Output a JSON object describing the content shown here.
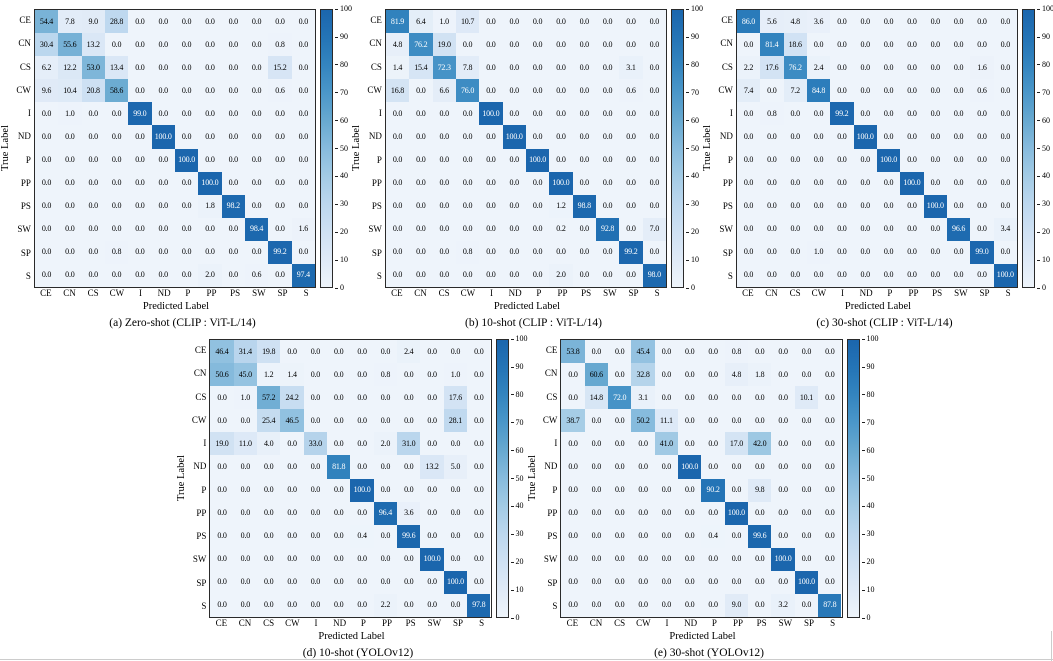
{
  "figure": {
    "xlabel": "Predicted Label",
    "ylabel": "True Label",
    "categories": [
      "CE",
      "CN",
      "CS",
      "CW",
      "I",
      "ND",
      "P",
      "PP",
      "PS",
      "SW",
      "SP",
      "S"
    ],
    "colorbar_ticks": [
      0,
      10,
      20,
      30,
      40,
      50,
      60,
      70,
      80,
      90,
      100
    ],
    "vmin": 0,
    "vmax": 100,
    "colormap": "Blues",
    "color_stops": [
      [
        0,
        "#eef4fb"
      ],
      [
        10,
        "#dfeaf7"
      ],
      [
        20,
        "#cfe1f3"
      ],
      [
        30,
        "#bcd7ee"
      ],
      [
        40,
        "#a3cbe5"
      ],
      [
        50,
        "#87bbdd"
      ],
      [
        60,
        "#68a9d0"
      ],
      [
        70,
        "#4b97c9"
      ],
      [
        80,
        "#3485bf"
      ],
      [
        90,
        "#2474b6"
      ],
      [
        100,
        "#1b66ad"
      ]
    ],
    "light_text_threshold": 66,
    "light_text_color": "#ffffff",
    "dark_text_color": "#000000"
  },
  "chart_data": [
    {
      "type": "heatmap",
      "id": "a",
      "caption": "(a) Zero-shot (CLIP : ViT-L/14)",
      "x_categories": [
        "CE",
        "CN",
        "CS",
        "CW",
        "I",
        "ND",
        "P",
        "PP",
        "PS",
        "SW",
        "SP",
        "S"
      ],
      "y_categories": [
        "CE",
        "CN",
        "CS",
        "CW",
        "I",
        "ND",
        "P",
        "PP",
        "PS",
        "SW",
        "SP",
        "S"
      ],
      "rows": [
        [
          54.4,
          7.8,
          9.0,
          28.8,
          0.0,
          0.0,
          0.0,
          0.0,
          0.0,
          0.0,
          0.0,
          0.0
        ],
        [
          30.4,
          55.6,
          13.2,
          0.0,
          0.0,
          0.0,
          0.0,
          0.0,
          0.0,
          0.0,
          0.8,
          0.0
        ],
        [
          6.2,
          12.2,
          53.0,
          13.4,
          0.0,
          0.0,
          0.0,
          0.0,
          0.0,
          0.0,
          15.2,
          0.0
        ],
        [
          9.6,
          10.4,
          20.8,
          58.6,
          0.0,
          0.0,
          0.0,
          0.0,
          0.0,
          0.0,
          0.6,
          0.0
        ],
        [
          0.0,
          1.0,
          0.0,
          0.0,
          99.0,
          0.0,
          0.0,
          0.0,
          0.0,
          0.0,
          0.0,
          0.0
        ],
        [
          0.0,
          0.0,
          0.0,
          0.0,
          0.0,
          100.0,
          0.0,
          0.0,
          0.0,
          0.0,
          0.0,
          0.0
        ],
        [
          0.0,
          0.0,
          0.0,
          0.0,
          0.0,
          0.0,
          100.0,
          0.0,
          0.0,
          0.0,
          0.0,
          0.0
        ],
        [
          0.0,
          0.0,
          0.0,
          0.0,
          0.0,
          0.0,
          0.0,
          100.0,
          0.0,
          0.0,
          0.0,
          0.0
        ],
        [
          0.0,
          0.0,
          0.0,
          0.0,
          0.0,
          0.0,
          0.0,
          1.8,
          98.2,
          0.0,
          0.0,
          0.0
        ],
        [
          0.0,
          0.0,
          0.0,
          0.0,
          0.0,
          0.0,
          0.0,
          0.0,
          0.0,
          98.4,
          0.0,
          1.6
        ],
        [
          0.0,
          0.0,
          0.0,
          0.8,
          0.0,
          0.0,
          0.0,
          0.0,
          0.0,
          0.0,
          99.2,
          0.0
        ],
        [
          0.0,
          0.0,
          0.0,
          0.0,
          0.0,
          0.0,
          0.0,
          2.0,
          0.0,
          0.6,
          0.0,
          97.4
        ]
      ]
    },
    {
      "type": "heatmap",
      "id": "b",
      "caption": "(b) 10-shot (CLIP : ViT-L/14)",
      "x_categories": [
        "CE",
        "CN",
        "CS",
        "CW",
        "I",
        "ND",
        "P",
        "PP",
        "PS",
        "SW",
        "SP",
        "S"
      ],
      "y_categories": [
        "CE",
        "CN",
        "CS",
        "CW",
        "I",
        "ND",
        "P",
        "PP",
        "PS",
        "SW",
        "SP",
        "S"
      ],
      "rows": [
        [
          81.9,
          6.4,
          1.0,
          10.7,
          0.0,
          0.0,
          0.0,
          0.0,
          0.0,
          0.0,
          0.0,
          0.0
        ],
        [
          4.8,
          76.2,
          19.0,
          0.0,
          0.0,
          0.0,
          0.0,
          0.0,
          0.0,
          0.0,
          0.0,
          0.0
        ],
        [
          1.4,
          15.4,
          72.3,
          7.8,
          0.0,
          0.0,
          0.0,
          0.0,
          0.0,
          0.0,
          3.1,
          0.0
        ],
        [
          16.8,
          0.0,
          6.6,
          76.0,
          0.0,
          0.0,
          0.0,
          0.0,
          0.0,
          0.0,
          0.6,
          0.0
        ],
        [
          0.0,
          0.0,
          0.0,
          0.0,
          100.0,
          0.0,
          0.0,
          0.0,
          0.0,
          0.0,
          0.0,
          0.0
        ],
        [
          0.0,
          0.0,
          0.0,
          0.0,
          0.0,
          100.0,
          0.0,
          0.0,
          0.0,
          0.0,
          0.0,
          0.0
        ],
        [
          0.0,
          0.0,
          0.0,
          0.0,
          0.0,
          0.0,
          100.0,
          0.0,
          0.0,
          0.0,
          0.0,
          0.0
        ],
        [
          0.0,
          0.0,
          0.0,
          0.0,
          0.0,
          0.0,
          0.0,
          100.0,
          0.0,
          0.0,
          0.0,
          0.0
        ],
        [
          0.0,
          0.0,
          0.0,
          0.0,
          0.0,
          0.0,
          0.0,
          1.2,
          98.8,
          0.0,
          0.0,
          0.0
        ],
        [
          0.0,
          0.0,
          0.0,
          0.0,
          0.0,
          0.0,
          0.0,
          0.2,
          0.0,
          92.8,
          0.0,
          7.0
        ],
        [
          0.0,
          0.0,
          0.0,
          0.8,
          0.0,
          0.0,
          0.0,
          0.0,
          0.0,
          0.0,
          99.2,
          0.0
        ],
        [
          0.0,
          0.0,
          0.0,
          0.0,
          0.0,
          0.0,
          0.0,
          2.0,
          0.0,
          0.0,
          0.0,
          98.0
        ]
      ]
    },
    {
      "type": "heatmap",
      "id": "c",
      "caption": "(c) 30-shot (CLIP : ViT-L/14)",
      "x_categories": [
        "CE",
        "CN",
        "CS",
        "CW",
        "I",
        "ND",
        "P",
        "PP",
        "PS",
        "SW",
        "SP",
        "S"
      ],
      "y_categories": [
        "CE",
        "CN",
        "CS",
        "CW",
        "I",
        "ND",
        "P",
        "PP",
        "PS",
        "SW",
        "SP",
        "S"
      ],
      "rows": [
        [
          86.0,
          5.6,
          4.8,
          3.6,
          0.0,
          0.0,
          0.0,
          0.0,
          0.0,
          0.0,
          0.0,
          0.0
        ],
        [
          0.0,
          81.4,
          18.6,
          0.0,
          0.0,
          0.0,
          0.0,
          0.0,
          0.0,
          0.0,
          0.0,
          0.0
        ],
        [
          2.2,
          17.6,
          76.2,
          2.4,
          0.0,
          0.0,
          0.0,
          0.0,
          0.0,
          0.0,
          1.6,
          0.0
        ],
        [
          7.4,
          0.0,
          7.2,
          84.8,
          0.0,
          0.0,
          0.0,
          0.0,
          0.0,
          0.0,
          0.6,
          0.0
        ],
        [
          0.0,
          0.8,
          0.0,
          0.0,
          99.2,
          0.0,
          0.0,
          0.0,
          0.0,
          0.0,
          0.0,
          0.0
        ],
        [
          0.0,
          0.0,
          0.0,
          0.0,
          0.0,
          100.0,
          0.0,
          0.0,
          0.0,
          0.0,
          0.0,
          0.0
        ],
        [
          0.0,
          0.0,
          0.0,
          0.0,
          0.0,
          0.0,
          100.0,
          0.0,
          0.0,
          0.0,
          0.0,
          0.0
        ],
        [
          0.0,
          0.0,
          0.0,
          0.0,
          0.0,
          0.0,
          0.0,
          100.0,
          0.0,
          0.0,
          0.0,
          0.0
        ],
        [
          0.0,
          0.0,
          0.0,
          0.0,
          0.0,
          0.0,
          0.0,
          0.0,
          100.0,
          0.0,
          0.0,
          0.0
        ],
        [
          0.0,
          0.0,
          0.0,
          0.0,
          0.0,
          0.0,
          0.0,
          0.0,
          0.0,
          96.6,
          0.0,
          3.4
        ],
        [
          0.0,
          0.0,
          0.0,
          1.0,
          0.0,
          0.0,
          0.0,
          0.0,
          0.0,
          0.0,
          99.0,
          0.0
        ],
        [
          0.0,
          0.0,
          0.0,
          0.0,
          0.0,
          0.0,
          0.0,
          0.0,
          0.0,
          0.0,
          0.0,
          100.0
        ]
      ]
    },
    {
      "type": "heatmap",
      "id": "d",
      "caption": "(d) 10-shot (YOLOv12)",
      "x_categories": [
        "CE",
        "CN",
        "CS",
        "CW",
        "I",
        "ND",
        "P",
        "PP",
        "PS",
        "SW",
        "SP",
        "S"
      ],
      "y_categories": [
        "CE",
        "CN",
        "CS",
        "CW",
        "I",
        "ND",
        "P",
        "PP",
        "PS",
        "SW",
        "SP",
        "S"
      ],
      "rows": [
        [
          46.4,
          31.4,
          19.8,
          0.0,
          0.0,
          0.0,
          0.0,
          0.0,
          2.4,
          0.0,
          0.0,
          0.0
        ],
        [
          50.6,
          45.0,
          1.2,
          1.4,
          0.0,
          0.0,
          0.0,
          0.8,
          0.0,
          0.0,
          1.0,
          0.0
        ],
        [
          0.0,
          1.0,
          57.2,
          24.2,
          0.0,
          0.0,
          0.0,
          0.0,
          0.0,
          0.0,
          17.6,
          0.0
        ],
        [
          0.0,
          0.0,
          25.4,
          46.5,
          0.0,
          0.0,
          0.0,
          0.0,
          0.0,
          0.0,
          28.1,
          0.0
        ],
        [
          19.0,
          11.0,
          4.0,
          0.0,
          33.0,
          0.0,
          0.0,
          2.0,
          31.0,
          0.0,
          0.0,
          0.0
        ],
        [
          0.0,
          0.0,
          0.0,
          0.0,
          0.0,
          81.8,
          0.0,
          0.0,
          0.0,
          13.2,
          5.0,
          0.0
        ],
        [
          0.0,
          0.0,
          0.0,
          0.0,
          0.0,
          0.0,
          100.0,
          0.0,
          0.0,
          0.0,
          0.0,
          0.0
        ],
        [
          0.0,
          0.0,
          0.0,
          0.0,
          0.0,
          0.0,
          0.0,
          96.4,
          3.6,
          0.0,
          0.0,
          0.0
        ],
        [
          0.0,
          0.0,
          0.0,
          0.0,
          0.0,
          0.0,
          0.4,
          0.0,
          99.6,
          0.0,
          0.0,
          0.0
        ],
        [
          0.0,
          0.0,
          0.0,
          0.0,
          0.0,
          0.0,
          0.0,
          0.0,
          0.0,
          100.0,
          0.0,
          0.0
        ],
        [
          0.0,
          0.0,
          0.0,
          0.0,
          0.0,
          0.0,
          0.0,
          0.0,
          0.0,
          0.0,
          100.0,
          0.0
        ],
        [
          0.0,
          0.0,
          0.0,
          0.0,
          0.0,
          0.0,
          0.0,
          2.2,
          0.0,
          0.0,
          0.0,
          97.8
        ]
      ]
    },
    {
      "type": "heatmap",
      "id": "e",
      "caption": "(e) 30-shot (YOLOv12)",
      "x_categories": [
        "CE",
        "CN",
        "CS",
        "CW",
        "I",
        "ND",
        "P",
        "PP",
        "PS",
        "SW",
        "SP",
        "S"
      ],
      "y_categories": [
        "CE",
        "CN",
        "CS",
        "CW",
        "I",
        "ND",
        "P",
        "PP",
        "PS",
        "SW",
        "SP",
        "S"
      ],
      "rows": [
        [
          53.8,
          0.0,
          0.0,
          45.4,
          0.0,
          0.0,
          0.0,
          0.8,
          0.0,
          0.0,
          0.0,
          0.0
        ],
        [
          0.0,
          60.6,
          0.0,
          32.8,
          0.0,
          0.0,
          0.0,
          4.8,
          1.8,
          0.0,
          0.0,
          0.0
        ],
        [
          0.0,
          14.8,
          72.0,
          3.1,
          0.0,
          0.0,
          0.0,
          0.0,
          0.0,
          0.0,
          10.1,
          0.0
        ],
        [
          38.7,
          0.0,
          0.0,
          50.2,
          11.1,
          0.0,
          0.0,
          0.0,
          0.0,
          0.0,
          0.0,
          0.0
        ],
        [
          0.0,
          0.0,
          0.0,
          0.0,
          41.0,
          0.0,
          0.0,
          17.0,
          42.0,
          0.0,
          0.0,
          0.0
        ],
        [
          0.0,
          0.0,
          0.0,
          0.0,
          0.0,
          100.0,
          0.0,
          0.0,
          0.0,
          0.0,
          0.0,
          0.0
        ],
        [
          0.0,
          0.0,
          0.0,
          0.0,
          0.0,
          0.0,
          90.2,
          0.0,
          9.8,
          0.0,
          0.0,
          0.0
        ],
        [
          0.0,
          0.0,
          0.0,
          0.0,
          0.0,
          0.0,
          0.0,
          100.0,
          0.0,
          0.0,
          0.0,
          0.0
        ],
        [
          0.0,
          0.0,
          0.0,
          0.0,
          0.0,
          0.0,
          0.4,
          0.0,
          99.6,
          0.0,
          0.0,
          0.0
        ],
        [
          0.0,
          0.0,
          0.0,
          0.0,
          0.0,
          0.0,
          0.0,
          0.0,
          0.0,
          100.0,
          0.0,
          0.0
        ],
        [
          0.0,
          0.0,
          0.0,
          0.0,
          0.0,
          0.0,
          0.0,
          0.0,
          0.0,
          0.0,
          100.0,
          0.0
        ],
        [
          0.0,
          0.0,
          0.0,
          0.0,
          0.0,
          0.0,
          0.0,
          9.0,
          0.0,
          3.2,
          0.0,
          87.8
        ]
      ]
    }
  ]
}
